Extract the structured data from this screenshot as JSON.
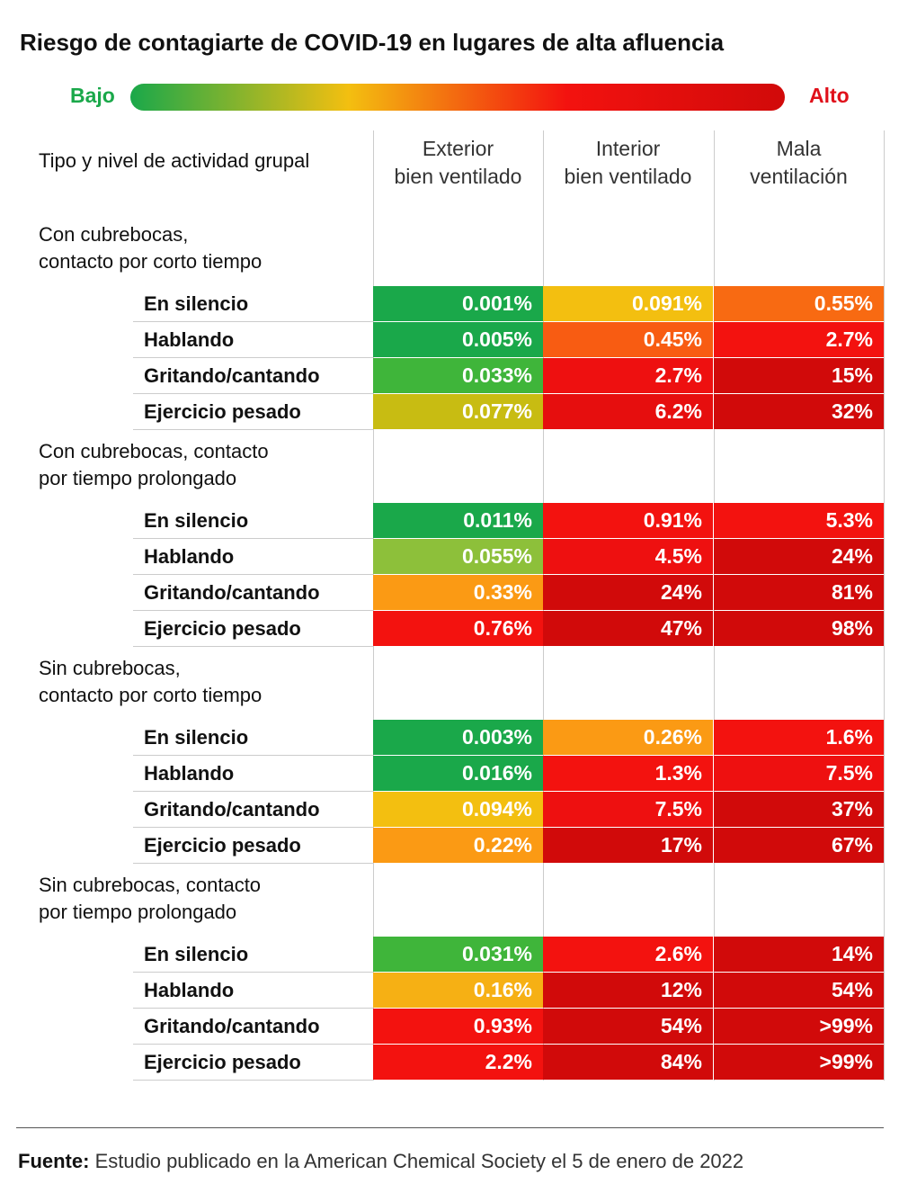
{
  "header": {
    "title": "Riesgo de contagiarte de COVID-19 en lugares de alta afluencia",
    "scale_low": "Bajo",
    "scale_high": "Alto",
    "scale_colors": [
      "#1aa84a",
      "#f3bf10",
      "#f3120f",
      "#d10a0a"
    ]
  },
  "table": {
    "row_header": "Tipo y nivel de actividad grupal",
    "columns": [
      [
        "Exterior",
        "bien ventilado"
      ],
      [
        "Interior",
        "bien ventilado"
      ],
      [
        "Mala",
        "ventilación"
      ]
    ],
    "groups": [
      {
        "label": [
          "Con cubrebocas,",
          "contacto por corto tiempo"
        ],
        "rows": [
          {
            "label": "En silencio",
            "cells": [
              "0.001%",
              "0.091%",
              "0.55%"
            ],
            "colors": [
              "#1aa84a",
              "#f3bf10",
              "#f86a12"
            ]
          },
          {
            "label": "Hablando",
            "cells": [
              "0.005%",
              "0.45%",
              "2.7%"
            ],
            "colors": [
              "#1aa84a",
              "#f85c12",
              "#f3120f"
            ]
          },
          {
            "label": "Gritando/cantando",
            "cells": [
              "0.033%",
              "2.7%",
              "15%"
            ],
            "colors": [
              "#3fb53a",
              "#ee1010",
              "#d10a0a"
            ]
          },
          {
            "label": "Ejercicio pesado",
            "cells": [
              "0.077%",
              "6.2%",
              "32%"
            ],
            "colors": [
              "#c8bc12",
              "#e60e0e",
              "#d10a0a"
            ]
          }
        ]
      },
      {
        "label": [
          "Con cubrebocas, contacto",
          "por tiempo prolongado"
        ],
        "rows": [
          {
            "label": "En silencio",
            "cells": [
              "0.011%",
              "0.91%",
              "5.3%"
            ],
            "colors": [
              "#1aa84a",
              "#f3120f",
              "#f3120f"
            ]
          },
          {
            "label": "Hablando",
            "cells": [
              "0.055%",
              "4.5%",
              "24%"
            ],
            "colors": [
              "#8dc03a",
              "#ee1010",
              "#d10a0a"
            ]
          },
          {
            "label": "Gritando/cantando",
            "cells": [
              "0.33%",
              "24%",
              "81%"
            ],
            "colors": [
              "#fb9a14",
              "#d10a0a",
              "#d10a0a"
            ]
          },
          {
            "label": "Ejercicio pesado",
            "cells": [
              "0.76%",
              "47%",
              "98%"
            ],
            "colors": [
              "#f3120f",
              "#d10a0a",
              "#d10a0a"
            ]
          }
        ]
      },
      {
        "label": [
          "Sin cubrebocas,",
          "contacto por corto tiempo"
        ],
        "rows": [
          {
            "label": "En silencio",
            "cells": [
              "0.003%",
              "0.26%",
              "1.6%"
            ],
            "colors": [
              "#1aa84a",
              "#fb9a14",
              "#f3120f"
            ]
          },
          {
            "label": "Hablando",
            "cells": [
              "0.016%",
              "1.3%",
              "7.5%"
            ],
            "colors": [
              "#1aa84a",
              "#f3120f",
              "#ee1010"
            ]
          },
          {
            "label": "Gritando/cantando",
            "cells": [
              "0.094%",
              "7.5%",
              "37%"
            ],
            "colors": [
              "#f3bf10",
              "#ee1010",
              "#d10a0a"
            ]
          },
          {
            "label": "Ejercicio pesado",
            "cells": [
              "0.22%",
              "17%",
              "67%"
            ],
            "colors": [
              "#fb9a14",
              "#d10a0a",
              "#d10a0a"
            ]
          }
        ]
      },
      {
        "label": [
          "Sin cubrebocas, contacto",
          "por tiempo prolongado"
        ],
        "rows": [
          {
            "label": "En silencio",
            "cells": [
              "0.031%",
              "2.6%",
              "14%"
            ],
            "colors": [
              "#3fb53a",
              "#f3120f",
              "#d10a0a"
            ]
          },
          {
            "label": "Hablando",
            "cells": [
              "0.16%",
              "12%",
              "54%"
            ],
            "colors": [
              "#f6b014",
              "#d10a0a",
              "#d10a0a"
            ]
          },
          {
            "label": "Gritando/cantando",
            "cells": [
              "0.93%",
              "54%",
              ">99%"
            ],
            "colors": [
              "#f3120f",
              "#d10a0a",
              "#d10a0a"
            ]
          },
          {
            "label": "Ejercicio pesado",
            "cells": [
              "2.2%",
              "84%",
              ">99%"
            ],
            "colors": [
              "#f3120f",
              "#d10a0a",
              "#d10a0a"
            ]
          }
        ]
      }
    ]
  },
  "footer": {
    "label": "Fuente:",
    "text": "Estudio publicado en la American Chemical Society el 5 de enero de 2022"
  }
}
